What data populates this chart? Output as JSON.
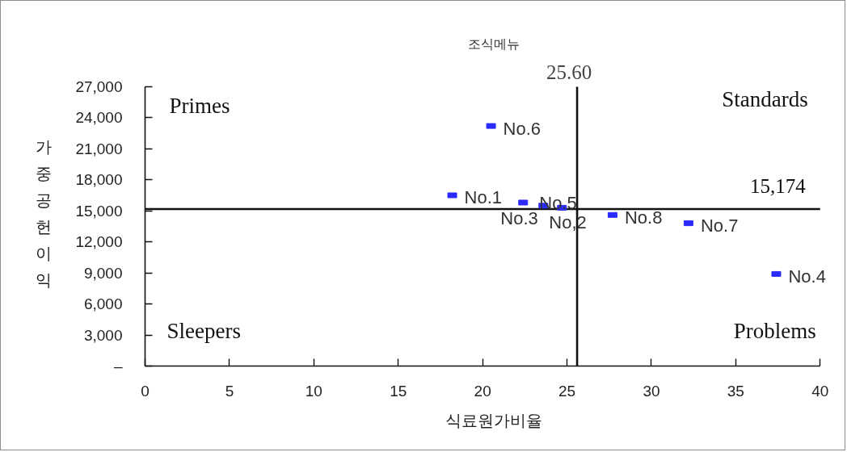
{
  "chart_data": {
    "type": "scatter",
    "title": "조식메뉴",
    "xlabel": "식료원가비율",
    "ylabel": "가중공헌이익",
    "color": "#2b2bff",
    "marker": "square",
    "series": [
      {
        "name": "No.1",
        "x": [
          18.2
        ],
        "values": [
          16500
        ]
      },
      {
        "name": "No,2",
        "x": [
          24.7
        ],
        "values": [
          15300
        ]
      },
      {
        "name": "No.3",
        "x": [
          22.4
        ],
        "values": [
          15800
        ]
      },
      {
        "name": "No.4",
        "x": [
          37.4
        ],
        "values": [
          8900
        ]
      },
      {
        "name": "No.5",
        "x": [
          23.6
        ],
        "values": [
          15500
        ]
      },
      {
        "name": "No.6",
        "x": [
          20.5
        ],
        "values": [
          23200
        ]
      },
      {
        "name": "No.7",
        "x": [
          32.2
        ],
        "values": [
          13800
        ]
      },
      {
        "name": "No.8",
        "x": [
          27.7
        ],
        "values": [
          14600
        ]
      }
    ],
    "xlim": [
      0,
      40
    ],
    "xticks": [
      0,
      5,
      10,
      15,
      20,
      25,
      30,
      35,
      40
    ],
    "ylim": [
      0,
      27000
    ],
    "yticks": [
      {
        "value": 0,
        "label": "–"
      },
      {
        "value": 3000,
        "label": "3,000"
      },
      {
        "value": 6000,
        "label": "6,000"
      },
      {
        "value": 9000,
        "label": "9,000"
      },
      {
        "value": 12000,
        "label": "12,000"
      },
      {
        "value": 15000,
        "label": "15,000"
      },
      {
        "value": 18000,
        "label": "18,000"
      },
      {
        "value": 21000,
        "label": "21,000"
      },
      {
        "value": 24000,
        "label": "24,000"
      },
      {
        "value": 27000,
        "label": "27,000"
      }
    ],
    "ref_lines": [
      {
        "axis": "x",
        "value": 25.6,
        "label": "25.60"
      },
      {
        "axis": "y",
        "value": 15174,
        "label": "15,174"
      }
    ],
    "annotations": [
      "Primes",
      "Standards",
      "Sleepers",
      "Problems"
    ]
  }
}
